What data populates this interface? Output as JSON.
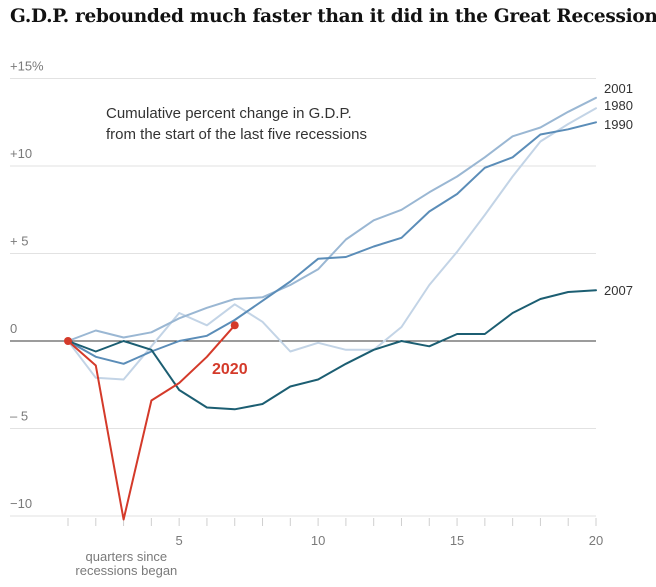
{
  "title": "G.D.P. rebounded much faster than it did in the Great Recession",
  "chart_data": {
    "type": "line",
    "note_lines": [
      "Cumulative percent change in G.D.P.",
      "from the start of the last five recessions"
    ],
    "xlabel_lines": [
      "quarters since",
      "recessions began"
    ],
    "xlim": [
      1,
      20
    ],
    "ylim": [
      -10.5,
      15
    ],
    "x_ticks": [
      {
        "value": 5,
        "label": "5"
      },
      {
        "value": 10,
        "label": "10"
      },
      {
        "value": 15,
        "label": "15"
      },
      {
        "value": 20,
        "label": "20"
      }
    ],
    "y_ticks": [
      {
        "value": 15,
        "label": "+15%"
      },
      {
        "value": 10,
        "label": "+10"
      },
      {
        "value": 5,
        "label": "+ 5"
      },
      {
        "value": 0,
        "label": "0"
      },
      {
        "value": -5,
        "label": "– 5"
      },
      {
        "value": -10,
        "label": "−10"
      }
    ],
    "grid": true,
    "series": [
      {
        "name": "1980",
        "color": "#c3d4e6",
        "width": 2,
        "x": [
          1,
          2,
          3,
          4,
          5,
          6,
          7,
          8,
          9,
          10,
          11,
          12,
          13,
          14,
          15,
          16,
          17,
          18,
          19,
          20
        ],
        "y": [
          0,
          -2.1,
          -2.2,
          -0.3,
          1.6,
          0.9,
          2.1,
          1.1,
          -0.6,
          -0.1,
          -0.5,
          -0.5,
          0.8,
          3.2,
          5.1,
          7.2,
          9.4,
          11.4,
          12.4,
          13.3
        ]
      },
      {
        "name": "1990",
        "color": "#5b8db8",
        "width": 2,
        "x": [
          1,
          2,
          3,
          4,
          5,
          6,
          7,
          8,
          9,
          10,
          11,
          12,
          13,
          14,
          15,
          16,
          17,
          18,
          19,
          20
        ],
        "y": [
          0,
          -0.9,
          -1.3,
          -0.6,
          0,
          0.3,
          1.2,
          2.3,
          3.4,
          4.7,
          4.8,
          5.4,
          5.9,
          7.4,
          8.4,
          9.9,
          10.5,
          11.8,
          12.1,
          12.5
        ]
      },
      {
        "name": "2001",
        "color": "#9ab7d3",
        "width": 2,
        "x": [
          1,
          2,
          3,
          4,
          5,
          6,
          7,
          8,
          9,
          10,
          11,
          12,
          13,
          14,
          15,
          16,
          17,
          18,
          19,
          20
        ],
        "y": [
          0,
          0.6,
          0.2,
          0.5,
          1.3,
          1.9,
          2.4,
          2.5,
          3.2,
          4.1,
          5.8,
          6.9,
          7.5,
          8.5,
          9.4,
          10.5,
          11.7,
          12.2,
          13.1,
          13.9
        ]
      },
      {
        "name": "2007",
        "color": "#1c5e72",
        "width": 2,
        "x": [
          1,
          2,
          3,
          4,
          5,
          6,
          7,
          8,
          9,
          10,
          11,
          12,
          13,
          14,
          15,
          16,
          17,
          18,
          19,
          20
        ],
        "y": [
          0,
          -0.6,
          0,
          -0.5,
          -2.8,
          -3.8,
          -3.9,
          -3.6,
          -2.6,
          -2.2,
          -1.3,
          -0.5,
          0,
          -0.3,
          0.4,
          0.4,
          1.6,
          2.4,
          2.8,
          2.9
        ]
      },
      {
        "name": "2020",
        "color": "#d43a2a",
        "width": 2,
        "x": [
          1,
          2,
          3,
          4,
          5,
          6,
          7
        ],
        "y": [
          0,
          -1.4,
          -10.2,
          -3.4,
          -2.4,
          -0.9,
          0.9
        ]
      }
    ]
  }
}
